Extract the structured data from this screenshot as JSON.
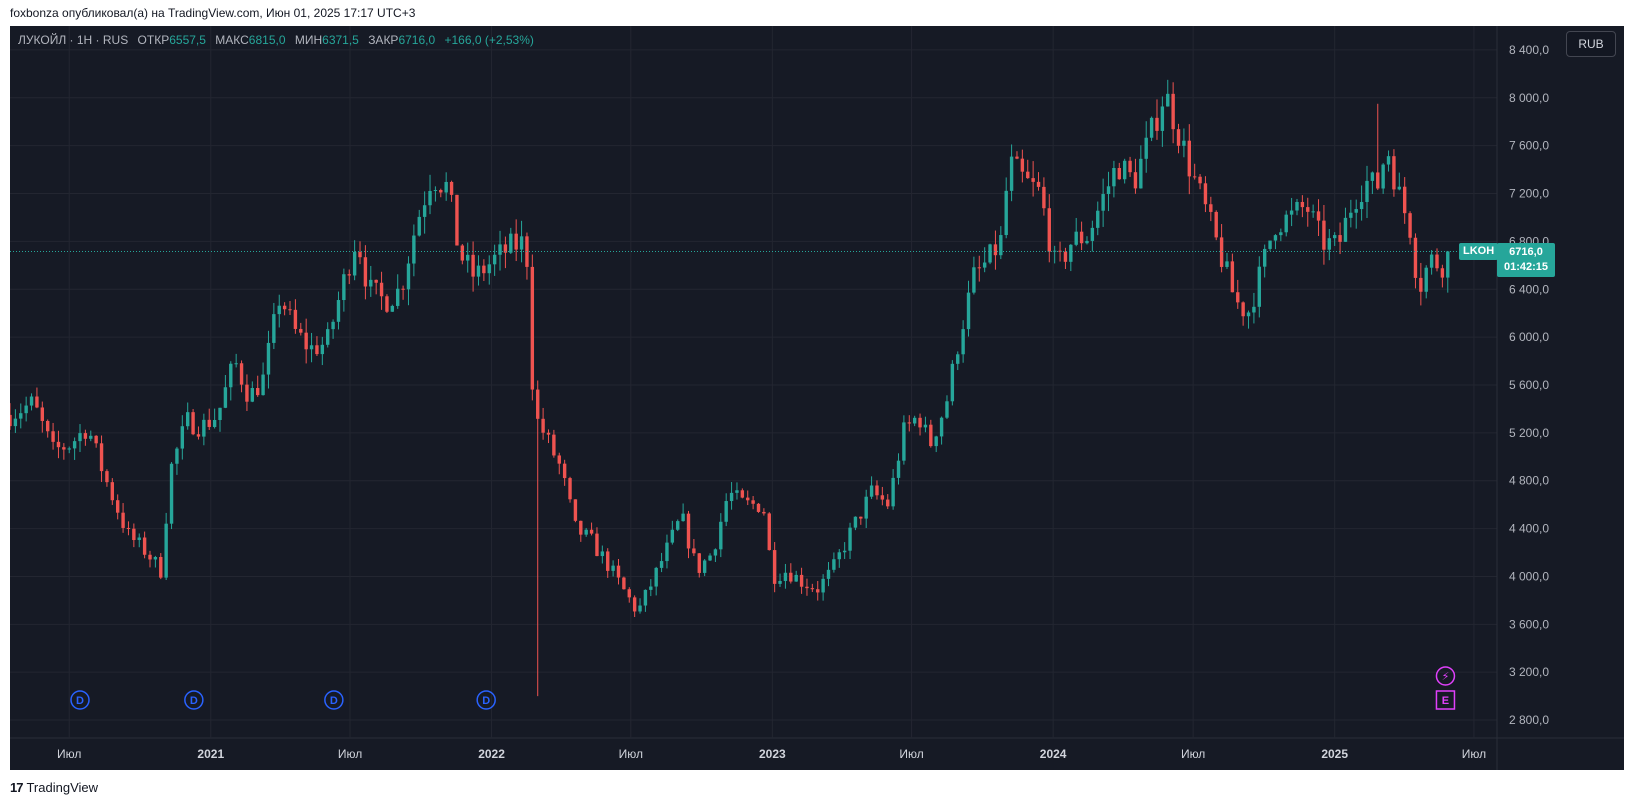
{
  "header": {
    "published": "foxbonza опубликовал(а) на TradingView.com, Июн 01, 2025 17:17 UTC+3"
  },
  "legend": {
    "title": "ЛУКОЙЛ · 1Н · RUS",
    "open_label": "ОТКР",
    "open": "6557,5",
    "high_label": "МАКС",
    "high": "6815,0",
    "low_label": "МИН",
    "low": "6371,5",
    "close_label": "ЗАКР",
    "close": "6716,0",
    "change": "+166,0 (+2,53%)"
  },
  "currency_button": "RUB",
  "price_scale": {
    "symbol": "LKOH",
    "last_price": "6716,0",
    "countdown": "01:42:15"
  },
  "footer": {
    "brand": "TradingView",
    "logo_glyph": "17"
  },
  "colors": {
    "up": "#26a69a",
    "down": "#ef5350",
    "background": "#161a25",
    "grid": "#232631",
    "dividend": "#2962ff",
    "event": "#e040fb"
  },
  "chart_data": {
    "type": "candlestick",
    "symbol": "LKOH",
    "y_axis": {
      "range": [
        2650,
        8600
      ],
      "ticks": [
        2800,
        3200,
        3600,
        4000,
        4400,
        4800,
        5200,
        5600,
        6000,
        6400,
        6800,
        7200,
        7600,
        8000,
        8400
      ],
      "tick_labels": [
        "2 800,0",
        "3 200,0",
        "3 600,0",
        "4 000,0",
        "4 400,0",
        "4 800,0",
        "5 200,0",
        "5 600,0",
        "6 000,0",
        "6 400,0",
        "6 800,0",
        "7 200,0",
        "7 600,0",
        "8 000,0",
        "8 400,0"
      ]
    },
    "x_axis": {
      "range": [
        "2020-04-15",
        "2025-07-31"
      ],
      "ticks": [
        {
          "date": "2020-07-01",
          "label": "Июл",
          "bold": false
        },
        {
          "date": "2021-01-01",
          "label": "2021",
          "bold": true
        },
        {
          "date": "2021-07-01",
          "label": "Июл",
          "bold": false
        },
        {
          "date": "2022-01-01",
          "label": "2022",
          "bold": true
        },
        {
          "date": "2022-07-01",
          "label": "Июл",
          "bold": false
        },
        {
          "date": "2023-01-01",
          "label": "2023",
          "bold": true
        },
        {
          "date": "2023-07-01",
          "label": "Июл",
          "bold": false
        },
        {
          "date": "2024-01-01",
          "label": "2024",
          "bold": true
        },
        {
          "date": "2024-07-01",
          "label": "Июл",
          "bold": false
        },
        {
          "date": "2025-01-01",
          "label": "2025",
          "bold": true
        },
        {
          "date": "2025-07-01",
          "label": "Июл",
          "bold": false
        }
      ]
    },
    "last_price": 6716,
    "dividend_markers": [
      {
        "date": "2020-07-15",
        "label": "D"
      },
      {
        "date": "2020-12-10",
        "label": "D"
      },
      {
        "date": "2021-06-10",
        "label": "D"
      },
      {
        "date": "2021-12-25",
        "label": "D"
      }
    ],
    "event_markers": [
      {
        "date": "2025-05-25",
        "label": "E",
        "type": "earnings"
      },
      {
        "date": "2025-05-25",
        "label": "⚡",
        "type": "split"
      }
    ],
    "price_path": [
      [
        "2020-04-15",
        5350
      ],
      [
        "2020-05-15",
        5450
      ],
      [
        "2020-06-10",
        5050
      ],
      [
        "2020-07-01",
        5100
      ],
      [
        "2020-07-25",
        5250
      ],
      [
        "2020-08-15",
        4850
      ],
      [
        "2020-09-15",
        4350
      ],
      [
        "2020-10-10",
        4200
      ],
      [
        "2020-10-28",
        4050
      ],
      [
        "2020-11-10",
        4900
      ],
      [
        "2020-12-01",
        5300
      ],
      [
        "2020-12-20",
        5250
      ],
      [
        "2021-01-10",
        5350
      ],
      [
        "2021-02-01",
        5800
      ],
      [
        "2021-02-20",
        5500
      ],
      [
        "2021-03-10",
        5650
      ],
      [
        "2021-04-01",
        6350
      ],
      [
        "2021-04-20",
        6050
      ],
      [
        "2021-05-10",
        5900
      ],
      [
        "2021-06-01",
        5950
      ],
      [
        "2021-06-20",
        6400
      ],
      [
        "2021-07-10",
        6850
      ],
      [
        "2021-07-25",
        6400
      ],
      [
        "2021-08-15",
        6300
      ],
      [
        "2021-09-05",
        6400
      ],
      [
        "2021-09-25",
        6950
      ],
      [
        "2021-10-15",
        7350
      ],
      [
        "2021-11-05",
        7250
      ],
      [
        "2021-11-20",
        6700
      ],
      [
        "2021-12-10",
        6500
      ],
      [
        "2022-01-05",
        6650
      ],
      [
        "2022-01-25",
        6750
      ],
      [
        "2022-02-15",
        6800
      ],
      [
        "2022-02-25",
        5350
      ],
      [
        "2022-03-10",
        5200
      ],
      [
        "2022-04-01",
        4900
      ],
      [
        "2022-04-20",
        4400
      ],
      [
        "2022-05-10",
        4300
      ],
      [
        "2022-06-01",
        4100
      ],
      [
        "2022-06-20",
        3900
      ],
      [
        "2022-07-10",
        3700
      ],
      [
        "2022-07-25",
        3900
      ],
      [
        "2022-08-15",
        4200
      ],
      [
        "2022-09-05",
        4500
      ],
      [
        "2022-09-25",
        4050
      ],
      [
        "2022-10-15",
        4200
      ],
      [
        "2022-11-05",
        4700
      ],
      [
        "2022-11-25",
        4600
      ],
      [
        "2022-12-20",
        4600
      ],
      [
        "2023-01-01",
        4000
      ],
      [
        "2023-01-20",
        4050
      ],
      [
        "2023-02-10",
        3950
      ],
      [
        "2023-03-01",
        3900
      ],
      [
        "2023-03-20",
        4050
      ],
      [
        "2023-04-15",
        4400
      ],
      [
        "2023-05-10",
        4700
      ],
      [
        "2023-06-01",
        4600
      ],
      [
        "2023-06-20",
        5200
      ],
      [
        "2023-07-10",
        5350
      ],
      [
        "2023-07-25",
        5100
      ],
      [
        "2023-08-15",
        5450
      ],
      [
        "2023-09-01",
        6000
      ],
      [
        "2023-09-20",
        6500
      ],
      [
        "2023-10-10",
        6650
      ],
      [
        "2023-10-25",
        6800
      ],
      [
        "2023-11-05",
        7450
      ],
      [
        "2023-11-25",
        7300
      ],
      [
        "2023-12-15",
        7200
      ],
      [
        "2024-01-05",
        6550
      ],
      [
        "2024-01-25",
        6800
      ],
      [
        "2024-02-15",
        6850
      ],
      [
        "2024-03-05",
        7150
      ],
      [
        "2024-03-25",
        7450
      ],
      [
        "2024-04-15",
        7300
      ],
      [
        "2024-05-05",
        7650
      ],
      [
        "2024-05-25",
        8050
      ],
      [
        "2024-06-10",
        7750
      ],
      [
        "2024-06-25",
        7450
      ],
      [
        "2024-07-15",
        7100
      ],
      [
        "2024-08-05",
        6700
      ],
      [
        "2024-08-25",
        6300
      ],
      [
        "2024-09-10",
        6200
      ],
      [
        "2024-09-25",
        6500
      ],
      [
        "2024-10-15",
        6950
      ],
      [
        "2024-11-05",
        7000
      ],
      [
        "2024-11-25",
        7100
      ],
      [
        "2024-12-15",
        6800
      ],
      [
        "2025-01-05",
        6750
      ],
      [
        "2025-01-25",
        7150
      ],
      [
        "2025-02-10",
        7300
      ],
      [
        "2025-02-25",
        7250
      ],
      [
        "2025-03-10",
        7600
      ],
      [
        "2025-03-25",
        7200
      ],
      [
        "2025-04-10",
        6900
      ],
      [
        "2025-04-20",
        6400
      ],
      [
        "2025-05-05",
        6650
      ],
      [
        "2025-05-20",
        6600
      ],
      [
        "2025-05-30",
        6716
      ]
    ]
  }
}
